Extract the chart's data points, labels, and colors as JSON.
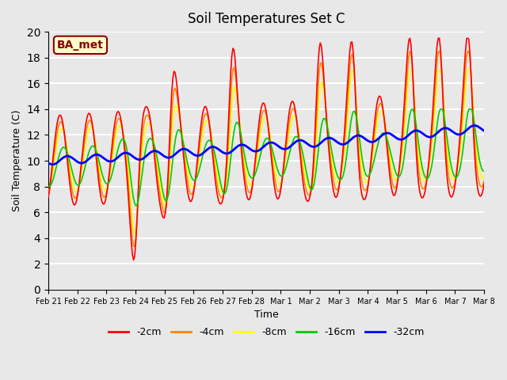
{
  "title": "Soil Temperatures Set C",
  "xlabel": "Time",
  "ylabel": "Soil Temperature (C)",
  "ylim": [
    0,
    20
  ],
  "yticks": [
    0,
    2,
    4,
    6,
    8,
    10,
    12,
    14,
    16,
    18,
    20
  ],
  "annotation": "BA_met",
  "legend_labels": [
    "-2cm",
    "-4cm",
    "-8cm",
    "-16cm",
    "-32cm"
  ],
  "legend_colors": [
    "#ff0000",
    "#ff8800",
    "#ffff00",
    "#00cc00",
    "#0000ff"
  ],
  "background_color": "#e8e8e8",
  "plot_bg_color": "#e8e8e8",
  "grid_color": "#ffffff",
  "x_dates": [
    "Feb 21",
    "Feb 22",
    "Feb 23",
    "Feb 24",
    "Feb 25",
    "Feb 26",
    "Feb 27",
    "Feb 28",
    "Mar 1",
    "Mar 2",
    "Mar 3",
    "Mar 4",
    "Mar 5",
    "Mar 6",
    "Mar 7",
    "Mar 8"
  ],
  "num_points": 400
}
